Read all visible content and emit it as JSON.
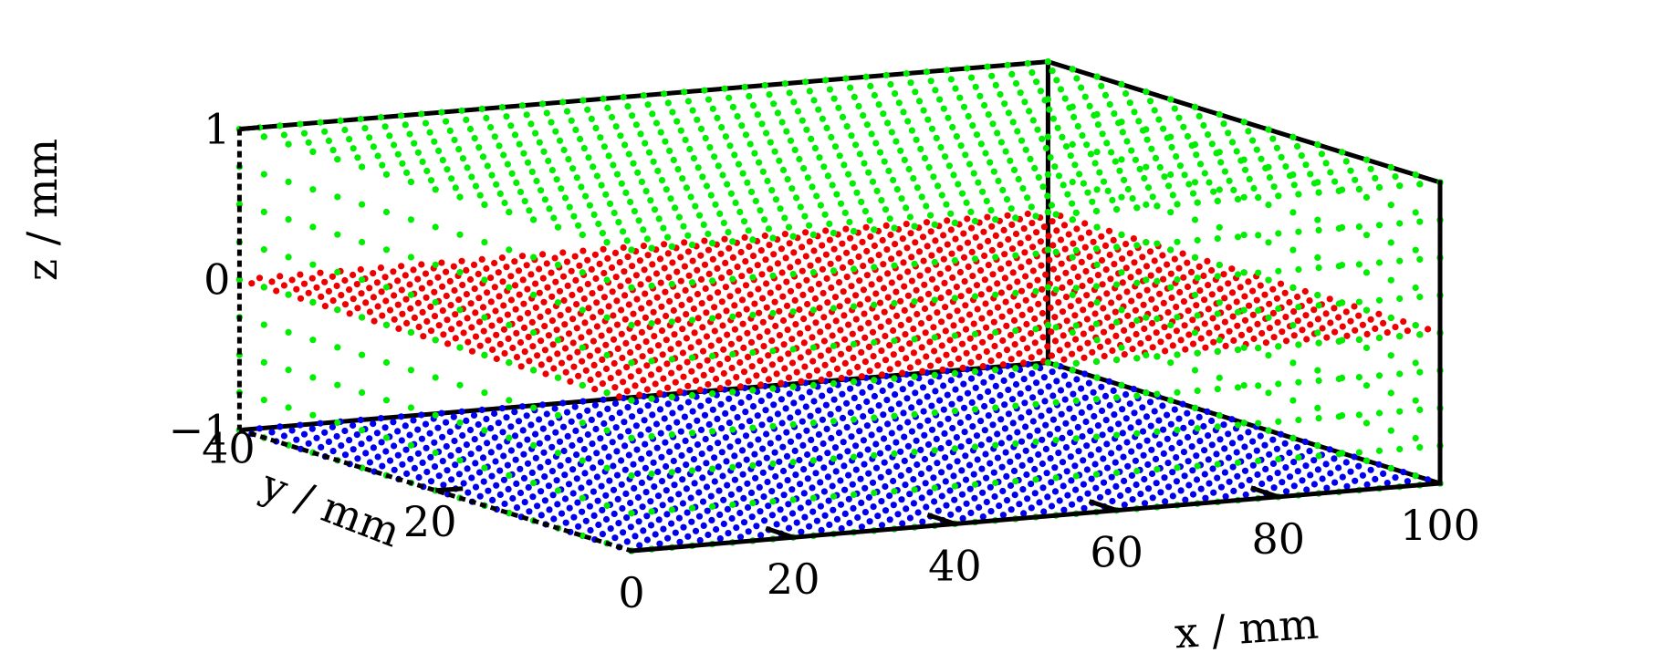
{
  "chart_data": {
    "type": "scatter3d",
    "x_label": "x / mm",
    "y_label": "y / mm",
    "z_label": "z / mm",
    "x_range": [
      0,
      100
    ],
    "y_range": [
      0,
      40
    ],
    "z_range": [
      -1,
      1
    ],
    "x_ticks": [
      "0",
      "20",
      "40",
      "60",
      "80",
      "100"
    ],
    "y_ticks": [
      "20",
      "40"
    ],
    "z_ticks": [
      "−1",
      "0",
      "1"
    ],
    "grid": false,
    "series": [
      {
        "color": "#00ee00",
        "description_planes": "z=1 surface plus x=0, y=0 and x=100 boundary faces",
        "x_step": 2.5,
        "y_step": 2.5,
        "z_plane": 1.0,
        "boundary_z_levels": [
          -1.0,
          -0.75,
          -0.5,
          -0.25,
          0.0,
          0.25,
          0.5,
          0.75,
          1.0
        ]
      },
      {
        "color": "#ee0000",
        "x_step": 2.5,
        "y_step": 1.25,
        "z_plane": 0.0
      },
      {
        "color": "#0000ee",
        "x_step": 2.5,
        "y_step": 1.25,
        "z_plane": -1.0
      }
    ]
  }
}
